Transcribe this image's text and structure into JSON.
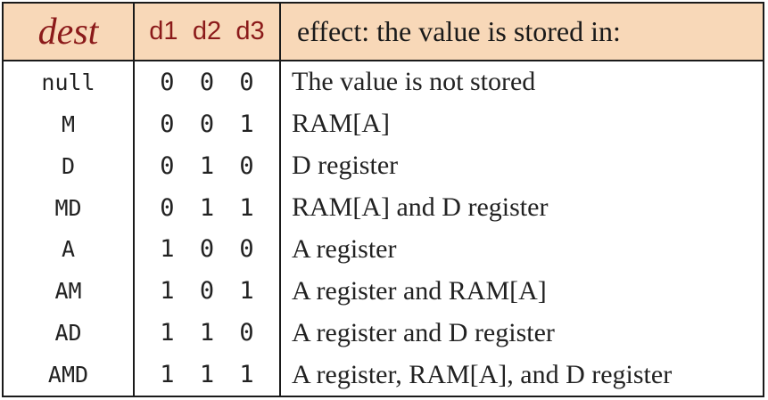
{
  "header": {
    "dest": "dest",
    "bits": [
      "d1",
      "d2",
      "d3"
    ],
    "effect": "effect: the value is stored in:"
  },
  "rows": [
    {
      "dest": "null",
      "bits": [
        "0",
        "0",
        "0"
      ],
      "effect": "The value is not stored"
    },
    {
      "dest": "M",
      "bits": [
        "0",
        "0",
        "1"
      ],
      "effect": "RAM[A]"
    },
    {
      "dest": "D",
      "bits": [
        "0",
        "1",
        "0"
      ],
      "effect": "D register"
    },
    {
      "dest": "MD",
      "bits": [
        "0",
        "1",
        "1"
      ],
      "effect": "RAM[A] and D register"
    },
    {
      "dest": "A",
      "bits": [
        "1",
        "0",
        "0"
      ],
      "effect": "A register"
    },
    {
      "dest": "AM",
      "bits": [
        "1",
        "0",
        "1"
      ],
      "effect": "A register and RAM[A]"
    },
    {
      "dest": "AD",
      "bits": [
        "1",
        "1",
        "0"
      ],
      "effect": "A register and D register"
    },
    {
      "dest": "AMD",
      "bits": [
        "1",
        "1",
        "1"
      ],
      "effect": "A register, RAM[A], and D register"
    }
  ],
  "colors": {
    "header_background": "#f8d8b8",
    "header_text": "#8b1a1a",
    "border": "#1a1a1a"
  }
}
